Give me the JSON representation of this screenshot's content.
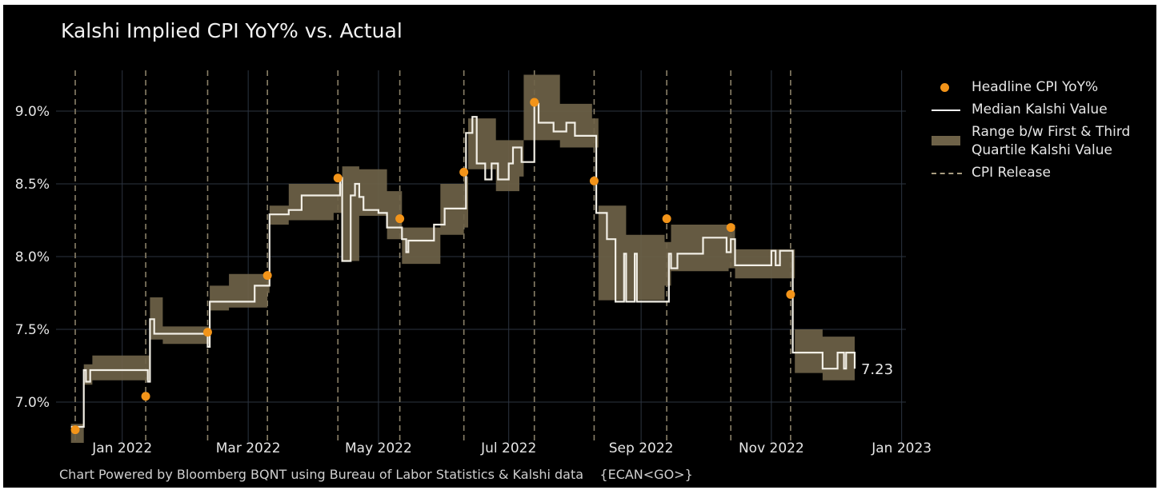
{
  "title": "Kalshi Implied CPI YoY% vs. Actual",
  "footer": "Chart Powered by Bloomberg BQNT using Bureau of Labor Statistics & Kalshi data    {ECAN<GO>}",
  "colors": {
    "background": "#000000",
    "grid": "#2c3440",
    "band": "#6e6248",
    "median": "#f2efe6",
    "dot": "#f39419",
    "release": "#8a8068",
    "text": "#e6e6e6"
  },
  "legend": {
    "headline": "Headline CPI YoY%",
    "median": "Median Kalshi Value",
    "range_line1": "Range b/w First & Third",
    "range_line2": "Quartile Kalshi Value",
    "release": "CPI Release"
  },
  "chart_data": {
    "type": "line",
    "title": "Kalshi Implied CPI YoY% vs. Actual",
    "xlabel": "",
    "ylabel": "",
    "x_ticks": [
      "Jan 2022",
      "Mar 2022",
      "May 2022",
      "Jul 2022",
      "Sep 2022",
      "Nov 2022",
      "Jan 2023"
    ],
    "x_tick_dates": [
      "2022-01-01",
      "2022-03-01",
      "2022-05-01",
      "2022-07-01",
      "2022-09-01",
      "2022-11-01",
      "2023-01-01"
    ],
    "y_ticks": [
      7.0,
      7.5,
      8.0,
      8.5,
      9.0
    ],
    "y_tick_labels": [
      "7.0%",
      "7.5%",
      "8.0%",
      "8.5%",
      "9.0%"
    ],
    "xlim": [
      "2021-12-01",
      "2023-01-03"
    ],
    "ylim": [
      6.72,
      9.28
    ],
    "grid": true,
    "legend_position": "right",
    "end_label": "7.23",
    "cpi_releases": [
      "2021-12-10",
      "2022-01-12",
      "2022-02-10",
      "2022-03-10",
      "2022-04-12",
      "2022-05-11",
      "2022-06-10",
      "2022-07-13",
      "2022-08-10",
      "2022-09-13",
      "2022-10-13",
      "2022-11-10"
    ],
    "series": [
      {
        "name": "Headline CPI YoY%",
        "kind": "scatter",
        "points": [
          {
            "date": "2021-12-10",
            "value": 6.81
          },
          {
            "date": "2022-01-12",
            "value": 7.04
          },
          {
            "date": "2022-02-10",
            "value": 7.48
          },
          {
            "date": "2022-03-10",
            "value": 7.87
          },
          {
            "date": "2022-04-12",
            "value": 8.54
          },
          {
            "date": "2022-05-11",
            "value": 8.26
          },
          {
            "date": "2022-06-10",
            "value": 8.58
          },
          {
            "date": "2022-07-13",
            "value": 9.06
          },
          {
            "date": "2022-08-10",
            "value": 8.52
          },
          {
            "date": "2022-09-13",
            "value": 8.26
          },
          {
            "date": "2022-10-13",
            "value": 8.2
          },
          {
            "date": "2022-11-10",
            "value": 7.74
          }
        ]
      },
      {
        "name": "Median Kalshi Value",
        "kind": "step-line",
        "points": [
          {
            "date": "2021-12-08",
            "value": 6.83
          },
          {
            "date": "2021-12-13",
            "value": 6.83
          },
          {
            "date": "2021-12-14",
            "value": 7.22
          },
          {
            "date": "2021-12-15",
            "value": 7.14
          },
          {
            "date": "2021-12-17",
            "value": 7.22
          },
          {
            "date": "2022-01-12",
            "value": 7.22
          },
          {
            "date": "2022-01-13",
            "value": 7.14
          },
          {
            "date": "2022-01-14",
            "value": 7.57
          },
          {
            "date": "2022-01-16",
            "value": 7.47
          },
          {
            "date": "2022-02-09",
            "value": 7.47
          },
          {
            "date": "2022-02-10",
            "value": 7.38
          },
          {
            "date": "2022-02-11",
            "value": 7.69
          },
          {
            "date": "2022-03-03",
            "value": 7.69
          },
          {
            "date": "2022-03-04",
            "value": 7.8
          },
          {
            "date": "2022-03-10",
            "value": 7.8
          },
          {
            "date": "2022-03-11",
            "value": 8.29
          },
          {
            "date": "2022-03-20",
            "value": 8.32
          },
          {
            "date": "2022-03-26",
            "value": 8.42
          },
          {
            "date": "2022-04-12",
            "value": 8.42
          },
          {
            "date": "2022-04-13",
            "value": 8.54
          },
          {
            "date": "2022-04-14",
            "value": 7.97
          },
          {
            "date": "2022-04-17",
            "value": 7.97
          },
          {
            "date": "2022-04-18",
            "value": 8.42
          },
          {
            "date": "2022-04-20",
            "value": 8.5
          },
          {
            "date": "2022-04-22",
            "value": 8.41
          },
          {
            "date": "2022-04-24",
            "value": 8.32
          },
          {
            "date": "2022-05-01",
            "value": 8.3
          },
          {
            "date": "2022-05-05",
            "value": 8.2
          },
          {
            "date": "2022-05-12",
            "value": 8.12
          },
          {
            "date": "2022-05-14",
            "value": 8.03
          },
          {
            "date": "2022-05-15",
            "value": 8.11
          },
          {
            "date": "2022-05-27",
            "value": 8.22
          },
          {
            "date": "2022-06-01",
            "value": 8.33
          },
          {
            "date": "2022-06-10",
            "value": 8.33
          },
          {
            "date": "2022-06-11",
            "value": 8.85
          },
          {
            "date": "2022-06-14",
            "value": 8.96
          },
          {
            "date": "2022-06-16",
            "value": 8.64
          },
          {
            "date": "2022-06-20",
            "value": 8.53
          },
          {
            "date": "2022-06-23",
            "value": 8.64
          },
          {
            "date": "2022-06-26",
            "value": 8.53
          },
          {
            "date": "2022-07-01",
            "value": 8.64
          },
          {
            "date": "2022-07-03",
            "value": 8.75
          },
          {
            "date": "2022-07-07",
            "value": 8.65
          },
          {
            "date": "2022-07-13",
            "value": 9.05
          },
          {
            "date": "2022-07-15",
            "value": 8.92
          },
          {
            "date": "2022-07-22",
            "value": 8.86
          },
          {
            "date": "2022-07-28",
            "value": 8.92
          },
          {
            "date": "2022-08-01",
            "value": 8.83
          },
          {
            "date": "2022-08-10",
            "value": 8.83
          },
          {
            "date": "2022-08-11",
            "value": 8.3
          },
          {
            "date": "2022-08-16",
            "value": 8.12
          },
          {
            "date": "2022-08-20",
            "value": 7.69
          },
          {
            "date": "2022-08-24",
            "value": 8.02
          },
          {
            "date": "2022-08-25",
            "value": 7.69
          },
          {
            "date": "2022-08-29",
            "value": 8.02
          },
          {
            "date": "2022-08-30",
            "value": 7.69
          },
          {
            "date": "2022-09-13",
            "value": 7.69
          },
          {
            "date": "2022-09-14",
            "value": 8.02
          },
          {
            "date": "2022-09-15",
            "value": 7.92
          },
          {
            "date": "2022-09-18",
            "value": 8.02
          },
          {
            "date": "2022-09-30",
            "value": 8.13
          },
          {
            "date": "2022-10-11",
            "value": 8.03
          },
          {
            "date": "2022-10-13",
            "value": 8.12
          },
          {
            "date": "2022-10-15",
            "value": 7.94
          },
          {
            "date": "2022-11-01",
            "value": 8.04
          },
          {
            "date": "2022-11-03",
            "value": 7.94
          },
          {
            "date": "2022-11-05",
            "value": 8.04
          },
          {
            "date": "2022-11-10",
            "value": 8.04
          },
          {
            "date": "2022-11-11",
            "value": 7.34
          },
          {
            "date": "2022-11-25",
            "value": 7.23
          },
          {
            "date": "2022-12-02",
            "value": 7.34
          },
          {
            "date": "2022-12-05",
            "value": 7.23
          },
          {
            "date": "2022-12-06",
            "value": 7.34
          },
          {
            "date": "2022-12-10",
            "value": 7.23
          }
        ]
      },
      {
        "name": "Range b/w First & Third Quartile Kalshi Value",
        "kind": "band",
        "points": [
          {
            "date": "2021-12-08",
            "low": 6.72,
            "high": 6.85
          },
          {
            "date": "2021-12-14",
            "low": 7.12,
            "high": 7.26
          },
          {
            "date": "2021-12-18",
            "low": 7.15,
            "high": 7.32
          },
          {
            "date": "2022-01-08",
            "low": 7.15,
            "high": 7.32
          },
          {
            "date": "2022-01-14",
            "low": 7.43,
            "high": 7.72
          },
          {
            "date": "2022-01-20",
            "low": 7.4,
            "high": 7.52
          },
          {
            "date": "2022-02-09",
            "low": 7.4,
            "high": 7.52
          },
          {
            "date": "2022-02-11",
            "low": 7.63,
            "high": 7.8
          },
          {
            "date": "2022-02-20",
            "low": 7.65,
            "high": 7.88
          },
          {
            "date": "2022-03-10",
            "low": 7.75,
            "high": 7.9
          },
          {
            "date": "2022-03-11",
            "low": 8.22,
            "high": 8.35
          },
          {
            "date": "2022-03-20",
            "low": 8.25,
            "high": 8.5
          },
          {
            "date": "2022-04-10",
            "low": 8.3,
            "high": 8.5
          },
          {
            "date": "2022-04-14",
            "low": 7.97,
            "high": 8.62
          },
          {
            "date": "2022-04-22",
            "low": 8.28,
            "high": 8.6
          },
          {
            "date": "2022-05-05",
            "low": 8.12,
            "high": 8.45
          },
          {
            "date": "2022-05-12",
            "low": 7.95,
            "high": 8.2
          },
          {
            "date": "2022-05-30",
            "low": 8.15,
            "high": 8.5
          },
          {
            "date": "2022-06-10",
            "low": 8.2,
            "high": 8.55
          },
          {
            "date": "2022-06-12",
            "low": 8.6,
            "high": 8.95
          },
          {
            "date": "2022-06-25",
            "low": 8.45,
            "high": 8.8
          },
          {
            "date": "2022-07-06",
            "low": 8.55,
            "high": 8.8
          },
          {
            "date": "2022-07-08",
            "low": 8.8,
            "high": 9.25
          },
          {
            "date": "2022-07-25",
            "low": 8.75,
            "high": 9.05
          },
          {
            "date": "2022-08-09",
            "low": 8.75,
            "high": 8.95
          },
          {
            "date": "2022-08-12",
            "low": 7.7,
            "high": 8.35
          },
          {
            "date": "2022-08-25",
            "low": 7.7,
            "high": 8.15
          },
          {
            "date": "2022-09-12",
            "low": 7.8,
            "high": 8.1
          },
          {
            "date": "2022-09-15",
            "low": 7.9,
            "high": 8.22
          },
          {
            "date": "2022-10-12",
            "low": 7.92,
            "high": 8.22
          },
          {
            "date": "2022-10-15",
            "low": 7.85,
            "high": 8.05
          },
          {
            "date": "2022-11-09",
            "low": 7.85,
            "high": 8.05
          },
          {
            "date": "2022-11-12",
            "low": 7.2,
            "high": 7.5
          },
          {
            "date": "2022-11-25",
            "low": 7.15,
            "high": 7.45
          },
          {
            "date": "2022-12-10",
            "low": 7.18,
            "high": 7.42
          }
        ]
      }
    ]
  }
}
